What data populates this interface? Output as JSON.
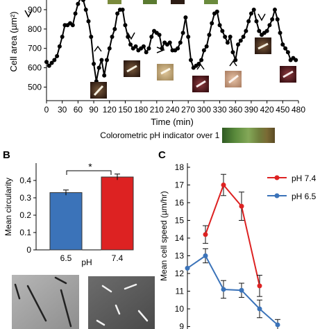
{
  "panels": {
    "b": "B",
    "c": "C"
  },
  "colors": {
    "red": "#dd2222",
    "blue": "#3b73b9",
    "line": "#000000"
  },
  "ph_indicator_label": "Colorometric pH indicator over 1 hour",
  "chart_data": [
    {
      "type": "line",
      "xlabel": "Time (min)",
      "ylabel": "Cell area (µm²)",
      "xlim": [
        0,
        480
      ],
      "ylim": [
        430,
        950
      ],
      "xticks": [
        "0",
        "30",
        "60",
        "90",
        "120",
        "150",
        "180",
        "210",
        "240",
        "270",
        "300",
        "330",
        "360",
        "390",
        "420",
        "450",
        "480"
      ],
      "yticks": [
        "500",
        "600",
        "700",
        "800",
        "900"
      ],
      "series": [
        {
          "x": [
            0,
            5,
            10,
            15,
            20,
            25,
            30,
            35,
            40,
            45,
            50,
            55,
            60,
            65,
            70,
            75,
            80,
            85,
            90,
            95,
            100,
            105,
            110,
            115,
            120,
            125,
            130,
            135,
            140,
            145,
            150,
            155,
            160,
            165,
            170,
            175,
            180,
            185,
            190,
            195,
            200,
            205,
            210,
            215,
            220,
            225,
            230,
            235,
            240,
            245,
            250,
            255,
            260,
            265,
            270,
            275,
            280,
            285,
            290,
            295,
            300,
            305,
            310,
            315,
            320,
            325,
            330,
            335,
            340,
            345,
            350,
            355,
            360,
            365,
            370,
            375,
            380,
            385,
            390,
            395,
            400,
            405,
            410,
            415,
            420,
            425,
            430,
            435,
            440,
            445,
            450,
            455,
            460,
            465,
            470,
            475
          ],
          "y": [
            630,
            610,
            625,
            640,
            660,
            710,
            760,
            820,
            820,
            830,
            820,
            880,
            930,
            960,
            950,
            900,
            840,
            760,
            620,
            530,
            600,
            640,
            560,
            640,
            700,
            760,
            800,
            880,
            900,
            900,
            820,
            760,
            720,
            700,
            710,
            690,
            700,
            710,
            680,
            700,
            760,
            790,
            780,
            770,
            700,
            730,
            720,
            730,
            690,
            690,
            700,
            730,
            780,
            860,
            760,
            640,
            600,
            610,
            620,
            640,
            690,
            710,
            770,
            830,
            880,
            890,
            820,
            790,
            760,
            730,
            760,
            680,
            640,
            720,
            740,
            760,
            790,
            840,
            880,
            900,
            840,
            790,
            770,
            780,
            790,
            820,
            850,
            900,
            850,
            780,
            720,
            700,
            680,
            640,
            650,
            640
          ]
        }
      ]
    },
    {
      "type": "bar",
      "ylabel": "Mean circularity",
      "xlabel": "pH",
      "ylim": [
        0,
        0.5
      ],
      "yticks": [
        "0",
        "0.1",
        "0.2",
        "0.3",
        "0.4"
      ],
      "categories": [
        "6.5",
        "7.4"
      ],
      "values": [
        0.33,
        0.42
      ],
      "errors": [
        0.015,
        0.017
      ],
      "significance": "*"
    },
    {
      "type": "line",
      "ylabel": "Mean cell speed (µm/hr)",
      "ylim": [
        9,
        18
      ],
      "yticks": [
        "9",
        "10",
        "11",
        "12",
        "13",
        "14",
        "15",
        "16",
        "17",
        "18"
      ],
      "series": [
        {
          "name": "pH 7.4",
          "x": [
            1,
            2,
            3,
            4
          ],
          "y": [
            14.2,
            17.0,
            15.8,
            11.3
          ],
          "err": [
            0.5,
            0.6,
            0.8,
            0.6
          ]
        },
        {
          "name": "pH 6.5",
          "x": [
            0,
            1,
            2,
            3,
            4,
            5
          ],
          "y": [
            12.3,
            13.0,
            11.1,
            11.05,
            10.0,
            9.1
          ],
          "err": [
            0,
            0.4,
            0.5,
            0.4,
            0.5,
            0.3
          ]
        }
      ]
    }
  ]
}
